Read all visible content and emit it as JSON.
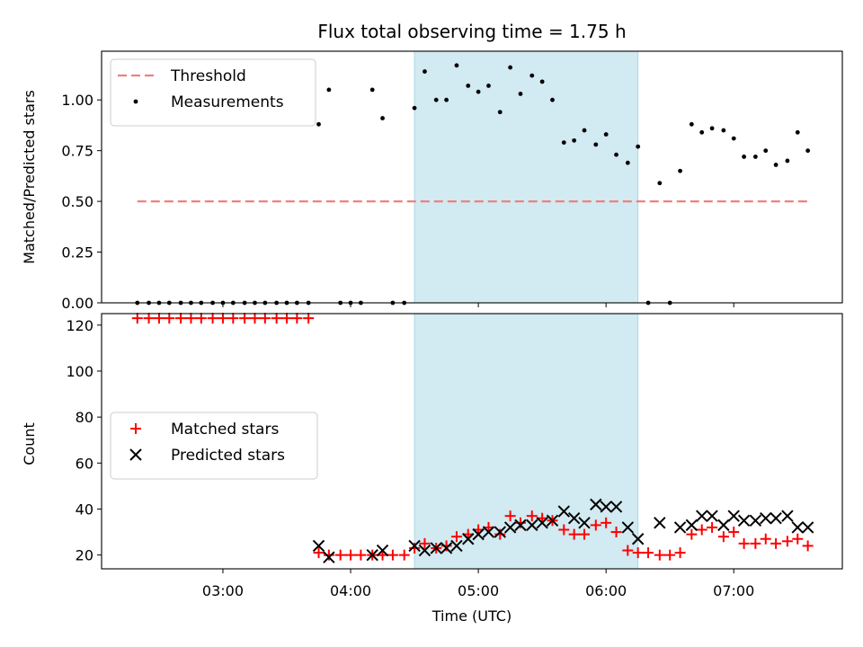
{
  "chart_data": {
    "title": "Flux total observing time = 1.75 h",
    "xlabel": "Time (UTC)",
    "xticks": [
      "03:00",
      "04:00",
      "05:00",
      "06:00",
      "07:00"
    ],
    "xlim_hours": [
      2.05,
      7.85
    ],
    "shaded_interval_hours": [
      4.5,
      6.25
    ],
    "shade_color": "#add8e6",
    "panels": [
      {
        "type": "scatter",
        "ylabel": "Matched/Predicted stars",
        "ylim": [
          0,
          1.24
        ],
        "yticks": [
          "0.00",
          "0.25",
          "0.50",
          "0.75",
          "1.00"
        ],
        "legend_position": "upper-left",
        "threshold": {
          "name": "Threshold",
          "value": 0.5,
          "x_range": [
            2.33,
            7.58
          ],
          "color": "#f08080"
        },
        "series": [
          {
            "name": "Measurements",
            "color": "#000000",
            "marker": "dot",
            "x": [
              2.33,
              2.42,
              2.5,
              2.58,
              2.67,
              2.75,
              2.83,
              2.92,
              3.0,
              3.08,
              3.17,
              3.25,
              3.33,
              3.42,
              3.5,
              3.58,
              3.67,
              3.75,
              3.83,
              3.92,
              4.0,
              4.08,
              4.17,
              4.25,
              4.33,
              4.42,
              4.5,
              4.58,
              4.67,
              4.75,
              4.83,
              4.92,
              5.0,
              5.08,
              5.17,
              5.25,
              5.33,
              5.42,
              5.5,
              5.58,
              5.67,
              5.75,
              5.83,
              5.92,
              6.0,
              6.08,
              6.17,
              6.25,
              6.33,
              6.42,
              6.5,
              6.58,
              6.67,
              6.75,
              6.83,
              6.92,
              7.0,
              7.08,
              7.17,
              7.25,
              7.33,
              7.42,
              7.5,
              7.58
            ],
            "y": [
              0,
              0,
              0,
              0,
              0,
              0,
              0,
              0,
              0,
              0,
              0,
              0,
              0,
              0,
              0,
              0,
              0,
              0.88,
              1.05,
              0,
              0,
              0,
              1.05,
              0.91,
              0,
              0,
              0.96,
              1.14,
              1.0,
              1.0,
              1.17,
              1.07,
              1.04,
              1.07,
              0.94,
              1.16,
              1.03,
              1.12,
              1.09,
              1.0,
              0.79,
              0.8,
              0.85,
              0.78,
              0.83,
              0.73,
              0.69,
              0.77,
              0,
              0.59,
              0,
              0.65,
              0.88,
              0.84,
              0.86,
              0.85,
              0.81,
              0.72,
              0.72,
              0.75,
              0.68,
              0.7,
              0.84,
              0.75
            ]
          }
        ]
      },
      {
        "type": "scatter",
        "ylabel": "Count",
        "ylim": [
          14,
          125
        ],
        "yticks": [
          "20",
          "40",
          "60",
          "80",
          "100",
          "120"
        ],
        "legend_position": "center-left",
        "series": [
          {
            "name": "Matched stars",
            "color": "#ff0000",
            "marker": "plus",
            "x": [
              2.33,
              2.42,
              2.5,
              2.58,
              2.67,
              2.75,
              2.83,
              2.92,
              3.0,
              3.08,
              3.17,
              3.25,
              3.33,
              3.42,
              3.5,
              3.58,
              3.67,
              3.75,
              3.83,
              3.92,
              4.0,
              4.08,
              4.17,
              4.25,
              4.33,
              4.42,
              4.5,
              4.58,
              4.67,
              4.75,
              4.83,
              4.92,
              5.0,
              5.08,
              5.17,
              5.25,
              5.33,
              5.42,
              5.5,
              5.58,
              5.67,
              5.75,
              5.83,
              5.92,
              6.0,
              6.08,
              6.17,
              6.25,
              6.33,
              6.42,
              6.5,
              6.58,
              6.67,
              6.75,
              6.83,
              6.92,
              7.0,
              7.08,
              7.17,
              7.25,
              7.33,
              7.42,
              7.5,
              7.58
            ],
            "y": [
              123,
              123,
              123,
              123,
              123,
              123,
              123,
              123,
              123,
              123,
              123,
              123,
              123,
              123,
              123,
              123,
              123,
              21,
              20,
              20,
              20,
              20,
              20,
              20,
              20,
              20,
              23,
              25,
              23,
              24,
              28,
              29,
              31,
              32,
              29,
              37,
              34,
              37,
              36,
              35,
              31,
              29,
              29,
              33,
              34,
              30,
              22,
              21,
              21,
              20,
              20,
              21,
              29,
              31,
              32,
              28,
              30,
              25,
              25,
              27,
              25,
              26,
              27,
              24
            ]
          },
          {
            "name": "Predicted stars",
            "color": "#000000",
            "marker": "x",
            "x": [
              3.75,
              3.83,
              4.17,
              4.25,
              4.5,
              4.58,
              4.67,
              4.75,
              4.83,
              4.92,
              5.0,
              5.08,
              5.17,
              5.25,
              5.33,
              5.42,
              5.5,
              5.58,
              5.67,
              5.75,
              5.83,
              5.92,
              6.0,
              6.08,
              6.17,
              6.25,
              6.42,
              6.58,
              6.67,
              6.75,
              6.83,
              6.92,
              7.0,
              7.08,
              7.17,
              7.25,
              7.33,
              7.42,
              7.5,
              7.58
            ],
            "y": [
              24,
              19,
              20,
              22,
              24,
              22,
              23,
              23,
              24,
              27,
              29,
              30,
              30,
              32,
              33,
              33,
              34,
              35,
              39,
              36,
              34,
              42,
              41,
              41,
              32,
              27,
              34,
              32,
              33,
              37,
              37,
              33,
              37,
              35,
              35,
              36,
              36,
              37,
              32,
              32
            ]
          }
        ]
      }
    ]
  }
}
